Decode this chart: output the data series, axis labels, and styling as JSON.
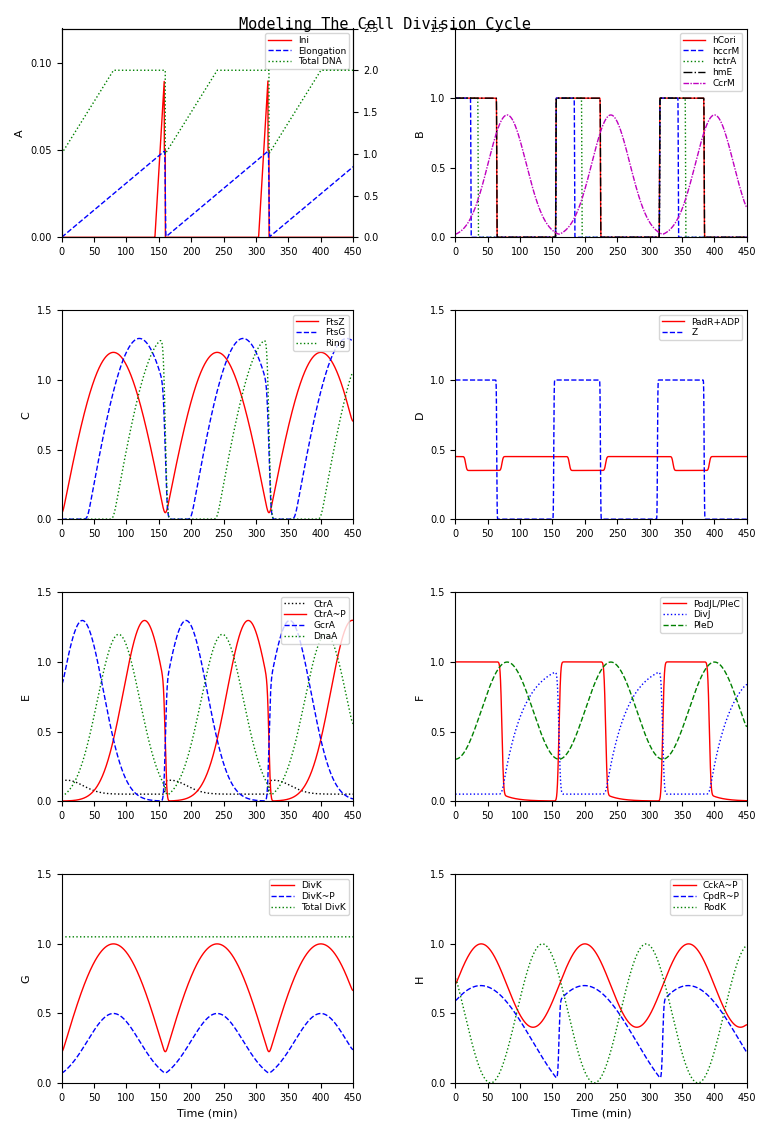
{
  "title": "Modeling The Cell Division Cycle",
  "figsize": [
    7.7,
    11.4
  ],
  "dpi": 100,
  "subplots": {
    "A": {
      "label": "A",
      "ylabel": "A",
      "ylim_left": [
        0,
        0.12
      ],
      "ylim_right": [
        0,
        2.5
      ],
      "yticks_left": [
        0,
        0.05,
        0.1
      ],
      "yticks_right": [
        0,
        0.5,
        1.0,
        1.5,
        2.0,
        2.5
      ],
      "xlim": [
        0,
        450
      ],
      "legend": [
        "Ini",
        "Elongation",
        "Total DNA"
      ],
      "legend_colors": [
        "red",
        "blue",
        "green"
      ],
      "legend_styles": [
        "-",
        "--",
        ":"
      ]
    },
    "B": {
      "label": "B",
      "ylabel": "B",
      "ylim": [
        0,
        1.5
      ],
      "xlim": [
        0,
        450
      ],
      "legend": [
        "hCori",
        "hccrM",
        "hctrA",
        "hmE",
        "CcrM"
      ],
      "legend_colors": [
        "red",
        "blue",
        "green",
        "black",
        "magenta"
      ],
      "legend_styles": [
        "-",
        "--",
        ":",
        "-.",
        "-."
      ]
    },
    "C": {
      "label": "C",
      "ylabel": "C",
      "ylim": [
        0,
        1.5
      ],
      "xlim": [
        0,
        450
      ],
      "legend": [
        "FtsZ",
        "FtsG",
        "Ring"
      ],
      "legend_colors": [
        "red",
        "blue",
        "green"
      ],
      "legend_styles": [
        "-",
        "--",
        ":"
      ]
    },
    "D": {
      "label": "D",
      "ylabel": "D",
      "ylim": [
        0,
        1.5
      ],
      "xlim": [
        0,
        450
      ],
      "legend": [
        "PadR+ADP",
        "Z"
      ],
      "legend_colors": [
        "red",
        "blue"
      ],
      "legend_styles": [
        "-",
        "--"
      ]
    },
    "E": {
      "label": "E",
      "ylabel": "E",
      "ylim": [
        0,
        1.5
      ],
      "xlim": [
        0,
        450
      ],
      "legend": [
        "CtrA",
        "CtrA~P",
        "GcrA",
        "DnaA"
      ],
      "legend_colors": [
        "black",
        "red",
        "blue",
        "green"
      ],
      "legend_styles": [
        ":",
        "-",
        "--",
        ":"
      ]
    },
    "F": {
      "label": "F",
      "ylabel": "F",
      "ylim": [
        0,
        1.5
      ],
      "xlim": [
        0,
        450
      ],
      "legend": [
        "PodJL/PleC",
        "DivJ",
        "PleD"
      ],
      "legend_colors": [
        "red",
        "blue",
        "green"
      ],
      "legend_styles": [
        "-",
        ":",
        "--"
      ]
    },
    "G": {
      "label": "G",
      "ylabel": "G",
      "ylim": [
        0,
        1.5
      ],
      "xlim": [
        0,
        450
      ],
      "legend": [
        "DivK",
        "DivK~P",
        "Total DivK"
      ],
      "legend_colors": [
        "red",
        "blue",
        "green"
      ],
      "legend_styles": [
        "-",
        "--",
        ":"
      ]
    },
    "H": {
      "label": "H",
      "ylabel": "H",
      "ylim": [
        0,
        1.5
      ],
      "xlim": [
        0,
        450
      ],
      "legend": [
        "CckA~P",
        "CpdR~P",
        "RodK"
      ],
      "legend_colors": [
        "red",
        "blue",
        "green"
      ],
      "legend_styles": [
        "-",
        "--",
        ":"
      ]
    }
  }
}
